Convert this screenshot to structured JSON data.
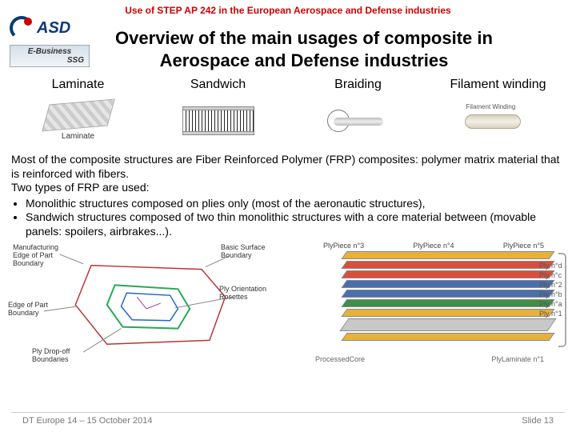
{
  "header": {
    "title": "Use of STEP AP 242 in the European Aerospace and Defense industries",
    "title_color": "#cc0000",
    "logo_text": "ASD",
    "ebusiness_line1": "E-Business",
    "ebusiness_line2": "SSG"
  },
  "main_title": "Overview of the main usages of composite in Aerospace and Defense industries",
  "columns": [
    {
      "title": "Laminate",
      "caption": "Laminate"
    },
    {
      "title": "Sandwich",
      "caption": ""
    },
    {
      "title": "Braiding",
      "caption": ""
    },
    {
      "title": "Filament winding",
      "caption": "Filament Winding"
    }
  ],
  "body": {
    "para1": "Most of the composite structures are Fiber Reinforced Polymer (FRP) composites: polymer matrix material that is reinforced with fibers.",
    "para2": "Two types of FRP are used:",
    "bullets": [
      "Monolithic structures composed on plies only (most of the aeronautic structures),",
      "Sandwich structures composed of two thin monolithic structures with a core material between (movable panels: spoilers, airbrakes...)."
    ]
  },
  "left_figure": {
    "labels": {
      "tl": "Manufacturing Edge of Part Boundary",
      "tr": "Basic Surface Boundary",
      "mr": "Ply Orientation Rosettes",
      "l": "Edge of Part Boundary",
      "bl": "Ply Drop-off Boundaries"
    }
  },
  "right_figure": {
    "top_labels": [
      "PlyPiece n°3",
      "PlyPiece n°4",
      "PlyPiece n°5"
    ],
    "side_labels": [
      "Ply n°d",
      "Ply n°c",
      "Ply n°2",
      "Ply n°b",
      "Ply n°a",
      "Ply n°1"
    ],
    "bottom_labels": [
      "ProcessedCore",
      "PlyLaminate n°1"
    ],
    "ply_colors": [
      "#e6b23a",
      "#d94f3a",
      "#d94f3a",
      "#4a6fae",
      "#4a6fae",
      "#3f8f4a",
      "#e6b23a",
      "#c8c8c8",
      "#e6b23a"
    ]
  },
  "footer": {
    "left": "DT Europe 14 – 15 October 2014",
    "right": "Slide 13"
  }
}
